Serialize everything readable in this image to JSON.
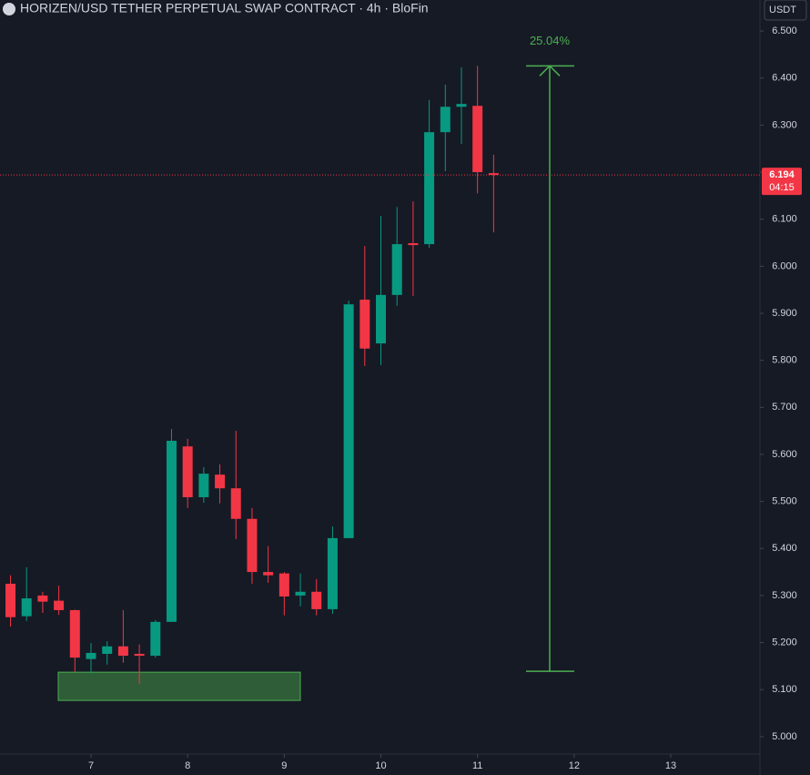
{
  "chart_data": {
    "type": "candlestick",
    "title": "HORIZEN/USD TETHER PERPETUAL SWAP CONTRACT · 4h · BloFin",
    "currency": "USDT",
    "up_color": "#089981",
    "down_color": "#f23645",
    "x": [
      6.1667,
      6.3333,
      6.5,
      6.6667,
      6.8333,
      7.0,
      7.1667,
      7.3333,
      7.5,
      7.6667,
      7.8333,
      8.0,
      8.1667,
      8.3333,
      8.5,
      8.6667,
      8.8333,
      9.0,
      9.1667,
      9.3333,
      9.5,
      9.6667,
      9.8333,
      10.0,
      10.1667,
      10.3333,
      10.5,
      10.6667,
      10.8333,
      11.0,
      11.1667
    ],
    "open": [
      5.325,
      5.256,
      5.3,
      5.289,
      5.269,
      5.165,
      5.176,
      5.192,
      5.176,
      5.172,
      5.244,
      5.617,
      5.509,
      5.557,
      5.528,
      5.463,
      5.35,
      5.347,
      5.3,
      5.308,
      5.271,
      5.422,
      5.929,
      5.836,
      5.939,
      6.049,
      6.047,
      6.285,
      6.339,
      6.341,
      6.198
    ],
    "high": [
      5.343,
      5.36,
      5.308,
      5.321,
      5.27,
      5.199,
      5.203,
      5.269,
      5.196,
      5.248,
      5.654,
      5.633,
      5.573,
      5.579,
      5.65,
      5.486,
      5.405,
      5.35,
      5.347,
      5.335,
      5.447,
      5.927,
      6.043,
      6.107,
      6.126,
      6.138,
      6.353,
      6.386,
      6.423,
      6.426,
      6.237
    ],
    "low": [
      5.234,
      5.246,
      5.263,
      5.259,
      5.137,
      5.134,
      5.153,
      5.157,
      5.112,
      5.168,
      5.244,
      5.486,
      5.497,
      5.496,
      5.42,
      5.325,
      5.327,
      5.258,
      5.277,
      5.258,
      5.261,
      5.422,
      5.788,
      5.79,
      5.916,
      5.937,
      6.039,
      6.202,
      6.26,
      6.155,
      6.072
    ],
    "close": [
      5.254,
      5.294,
      5.287,
      5.269,
      5.168,
      5.178,
      5.192,
      5.172,
      5.172,
      5.244,
      5.629,
      5.509,
      5.559,
      5.528,
      5.463,
      5.35,
      5.343,
      5.298,
      5.308,
      5.271,
      5.422,
      5.919,
      5.825,
      5.939,
      6.047,
      6.045,
      6.285,
      6.339,
      6.345,
      6.2,
      6.194
    ],
    "xlim": [
      6.058,
      13.923
    ],
    "xticks": [
      7,
      8,
      9,
      10,
      11,
      12,
      13
    ],
    "ylim": [
      4.963,
      6.566
    ],
    "yticks": [
      {
        "value": 5.0,
        "label": "5.000"
      },
      {
        "value": 5.1,
        "label": "5.100"
      },
      {
        "value": 5.2,
        "label": "5.200"
      },
      {
        "value": 5.3,
        "label": "5.300"
      },
      {
        "value": 5.4,
        "label": "5.400"
      },
      {
        "value": 5.5,
        "label": "5.500"
      },
      {
        "value": 5.6,
        "label": "5.600"
      },
      {
        "value": 5.7,
        "label": "5.700"
      },
      {
        "value": 5.8,
        "label": "5.800"
      },
      {
        "value": 5.9,
        "label": "5.900"
      },
      {
        "value": 6.0,
        "label": "6.000"
      },
      {
        "value": 6.1,
        "label": "6.100"
      },
      {
        "value": 6.2,
        "label": "6.200"
      },
      {
        "value": 6.3,
        "label": "6.300"
      },
      {
        "value": 6.4,
        "label": "6.400"
      },
      {
        "value": 6.5,
        "label": "6.500"
      }
    ],
    "last_price": {
      "value": 6.194,
      "label": "6.194",
      "countdown": "04:15"
    },
    "zone": {
      "top": 5.137,
      "bottom": 5.077,
      "color": "#4caf50"
    },
    "measure": {
      "from": 5.139,
      "to": 6.426,
      "label": "25.04%",
      "color": "#4caf50"
    }
  }
}
